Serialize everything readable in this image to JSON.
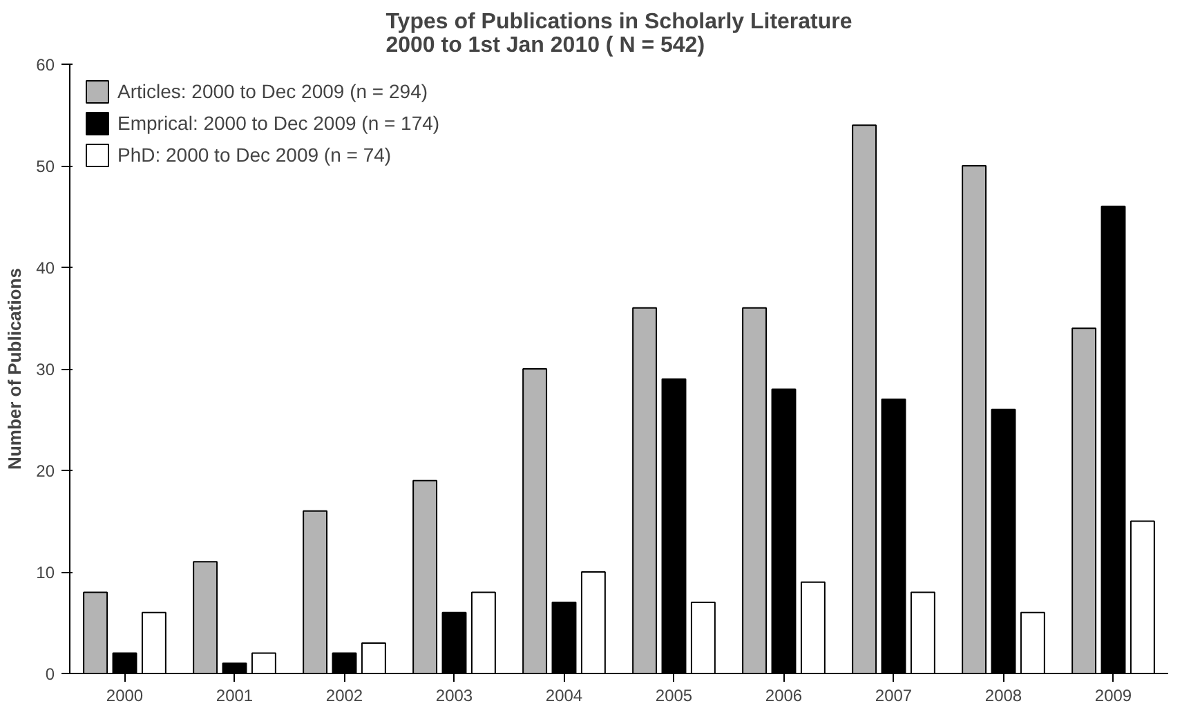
{
  "chart_data": {
    "type": "bar",
    "title": "Types of Publications in Scholarly Literature\n2000 to 1st Jan 2010 ( N = 542)",
    "ylabel": "Number of Publications",
    "categories": [
      "2000",
      "2001",
      "2002",
      "2003",
      "2004",
      "2005",
      "2006",
      "2007",
      "2008",
      "2009"
    ],
    "series": [
      {
        "name": "Articles: 2000 to Dec 2009 (n = 294)",
        "color": "#b4b4b4",
        "values": [
          8,
          11,
          16,
          19,
          30,
          36,
          36,
          54,
          50,
          34
        ]
      },
      {
        "name": "Emprical: 2000 to Dec 2009 (n = 174)",
        "color": "#000000",
        "values": [
          2,
          1,
          2,
          6,
          7,
          29,
          28,
          27,
          26,
          46
        ]
      },
      {
        "name": "PhD: 2000 to Dec 2009 (n = 74)",
        "color": "#ffffff",
        "values": [
          6,
          2,
          3,
          8,
          10,
          7,
          9,
          8,
          6,
          15
        ]
      }
    ],
    "ylim": [
      0,
      60
    ],
    "yticks": [
      0,
      10,
      20,
      30,
      40,
      50,
      60
    ],
    "grid": false,
    "legend": "top left"
  }
}
